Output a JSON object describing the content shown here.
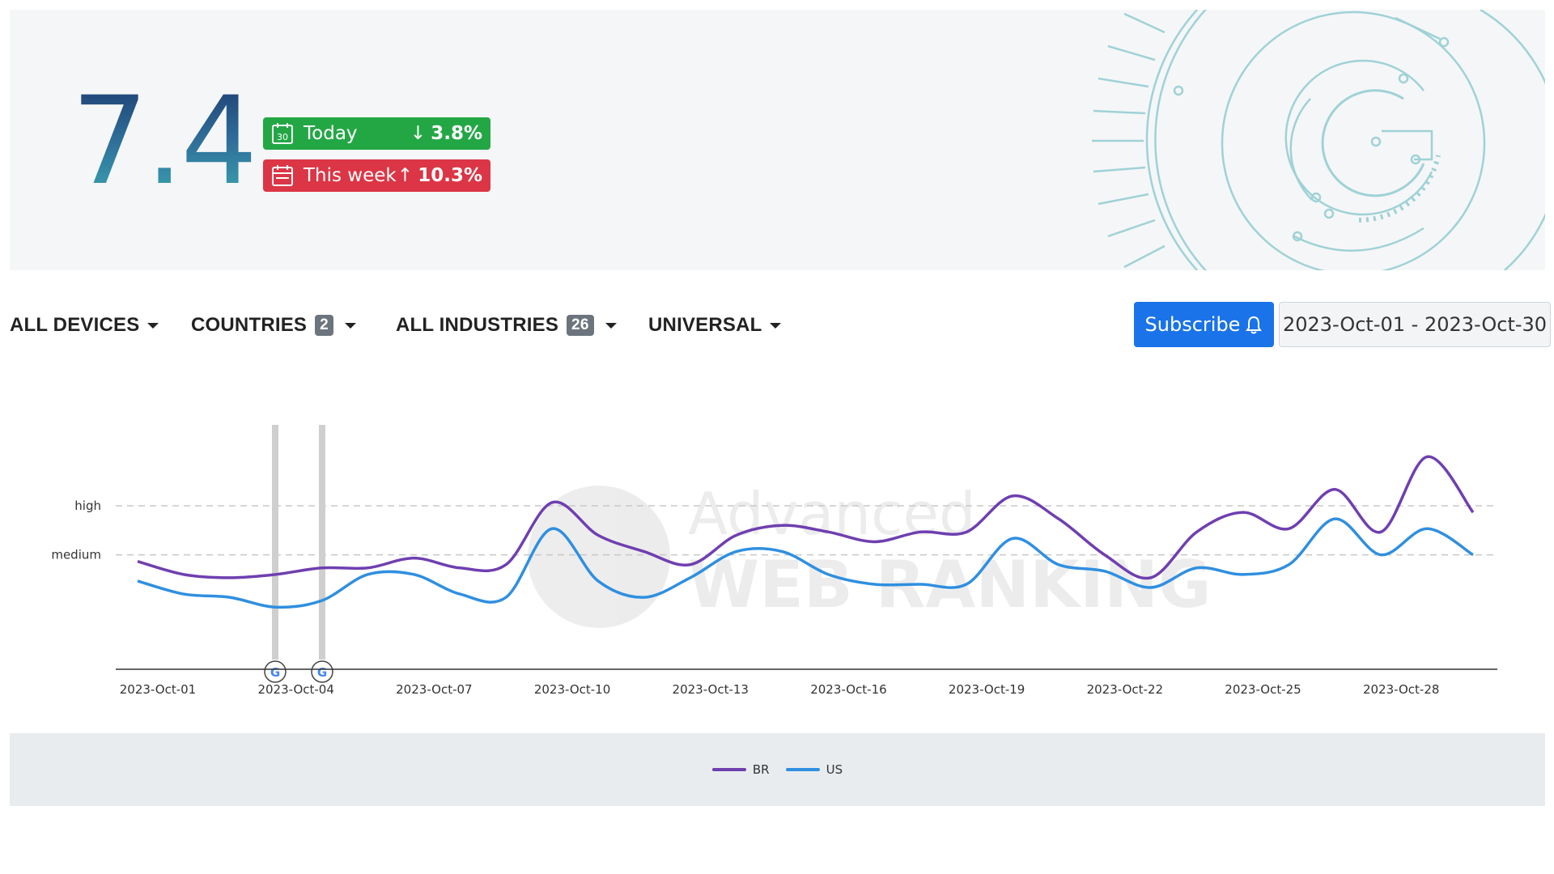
{
  "hero": {
    "score": "7.4",
    "today": {
      "label": "Today",
      "change": "3.8%",
      "direction": "down",
      "calendar_day": "30",
      "color": "#23a745"
    },
    "week": {
      "label": "This week",
      "change": "10.3%",
      "direction": "up",
      "color": "#dc3545"
    }
  },
  "filters": {
    "devices": {
      "label": "ALL DEVICES"
    },
    "countries": {
      "label": "COUNTRIES",
      "count": "2"
    },
    "industries": {
      "label": "ALL INDUSTRIES",
      "count": "26"
    },
    "universal": {
      "label": "UNIVERSAL"
    },
    "subscribe_label": "Subscribe",
    "date_range": "2023-Oct-01 - 2023-Oct-30"
  },
  "chart_data": {
    "type": "line",
    "y_levels": [
      {
        "label": "high",
        "value": 8.6
      },
      {
        "label": "medium",
        "value": 7.1
      }
    ],
    "ylim": [
      3.6,
      8.6
    ],
    "x_ticks": [
      "2023-Oct-01",
      "2023-Oct-04",
      "2023-Oct-07",
      "2023-Oct-10",
      "2023-Oct-13",
      "2023-Oct-16",
      "2023-Oct-19",
      "2023-Oct-22",
      "2023-Oct-25",
      "2023-Oct-28"
    ],
    "x": [
      "2023-Oct-01",
      "2023-Oct-02",
      "2023-Oct-03",
      "2023-Oct-04",
      "2023-Oct-05",
      "2023-Oct-06",
      "2023-Oct-07",
      "2023-Oct-08",
      "2023-Oct-09",
      "2023-Oct-10",
      "2023-Oct-11",
      "2023-Oct-12",
      "2023-Oct-13",
      "2023-Oct-14",
      "2023-Oct-15",
      "2023-Oct-16",
      "2023-Oct-17",
      "2023-Oct-18",
      "2023-Oct-19",
      "2023-Oct-20",
      "2023-Oct-21",
      "2023-Oct-22",
      "2023-Oct-23",
      "2023-Oct-24",
      "2023-Oct-25",
      "2023-Oct-26",
      "2023-Oct-27",
      "2023-Oct-28",
      "2023-Oct-29",
      "2023-Oct-30"
    ],
    "series": [
      {
        "name": "BR",
        "color": "#6f3fb0",
        "values": [
          6.9,
          6.5,
          6.4,
          6.5,
          6.7,
          6.7,
          7.0,
          6.7,
          6.8,
          8.7,
          7.7,
          7.2,
          6.8,
          7.7,
          8.0,
          7.8,
          7.5,
          7.8,
          7.8,
          8.9,
          8.2,
          7.1,
          6.4,
          7.8,
          8.4,
          7.9,
          9.1,
          7.8,
          10.1,
          8.4
        ]
      },
      {
        "name": "US",
        "color": "#2f8fe0",
        "values": [
          6.3,
          5.9,
          5.8,
          5.5,
          5.7,
          6.5,
          6.5,
          5.9,
          5.8,
          7.9,
          6.3,
          5.8,
          6.4,
          7.2,
          7.2,
          6.5,
          6.2,
          6.2,
          6.2,
          7.6,
          6.8,
          6.6,
          6.1,
          6.7,
          6.5,
          6.8,
          8.2,
          7.1,
          7.9,
          7.1
        ]
      }
    ],
    "annotation_dates": [
      "2023-Oct-02",
      "2023-Oct-03"
    ],
    "legend_position": "bottom",
    "grid": false
  }
}
